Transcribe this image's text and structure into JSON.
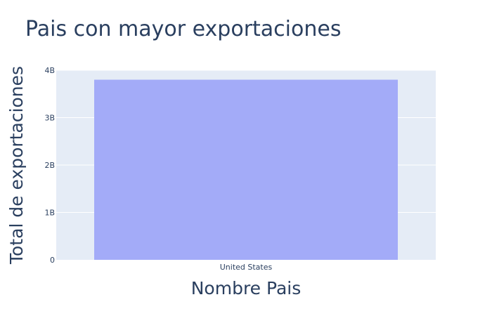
{
  "chart_data": {
    "type": "bar",
    "title": "Pais con mayor exportaciones",
    "xlabel": "Nombre Pais",
    "ylabel": "Total de exportaciones",
    "categories": [
      "United States"
    ],
    "values": [
      3800000000
    ],
    "ylim": [
      0,
      4000000000
    ],
    "yticks": [
      {
        "value": 0,
        "label": "0"
      },
      {
        "value": 1000000000,
        "label": "1B"
      },
      {
        "value": 2000000000,
        "label": "2B"
      },
      {
        "value": 3000000000,
        "label": "3B"
      },
      {
        "value": 4000000000,
        "label": "4B"
      }
    ],
    "grid": true,
    "colors": {
      "plot_bg": "#e5ecf6",
      "bar": "#a3abf8",
      "grid": "#ffffff",
      "text": "#2a3f5f"
    }
  }
}
